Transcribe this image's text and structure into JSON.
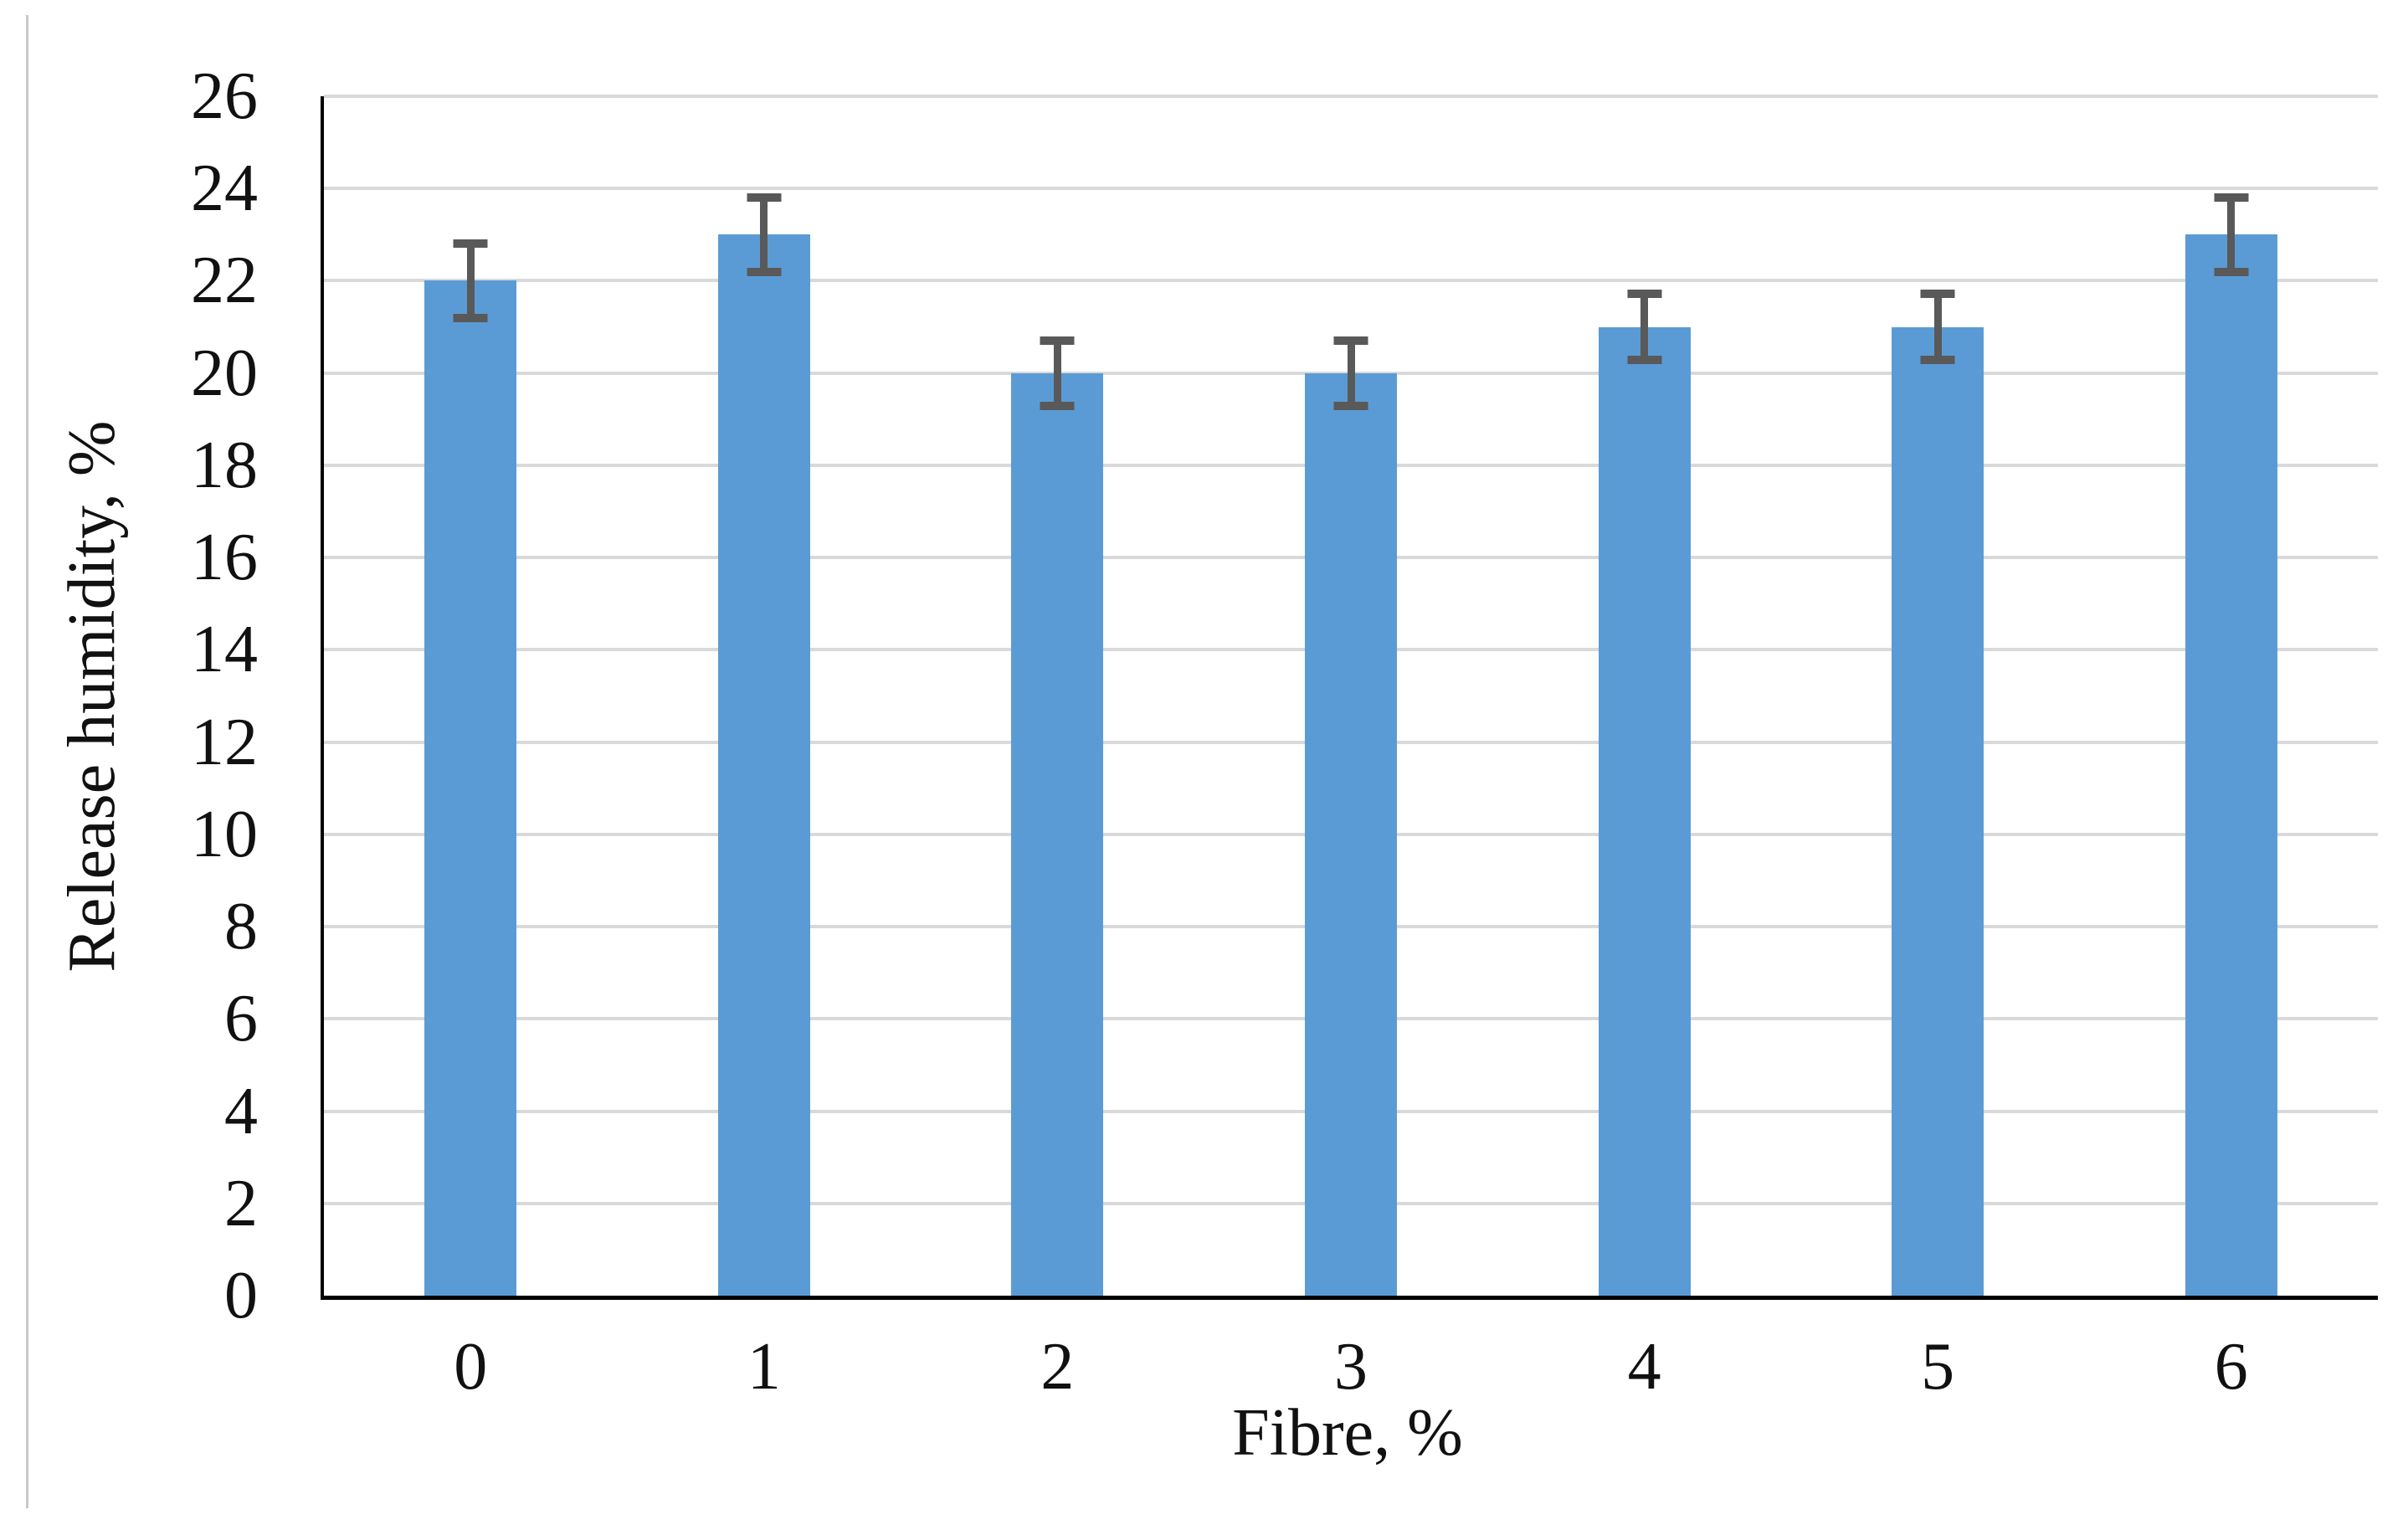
{
  "figure": {
    "background": "#ffffff",
    "left_rule_color": "#c8c8c8"
  },
  "chart_data": {
    "type": "bar",
    "title": "",
    "xlabel": "Fibre, %",
    "ylabel": "Release humidity, %",
    "categories": [
      "0",
      "1",
      "2",
      "3",
      "4",
      "5",
      "6"
    ],
    "series": [
      {
        "name": "Release humidity, %",
        "values": [
          22,
          23,
          20,
          20,
          21,
          21,
          23
        ],
        "error_plus": [
          0.9,
          0.9,
          0.8,
          0.8,
          0.8,
          0.8,
          0.9
        ],
        "error_minus": [
          0.9,
          0.9,
          0.8,
          0.8,
          0.8,
          0.8,
          0.9
        ]
      }
    ],
    "ylim": [
      0,
      26
    ],
    "yticks": [
      0,
      2,
      4,
      6,
      8,
      10,
      12,
      14,
      16,
      18,
      20,
      22,
      24,
      26
    ],
    "grid": true,
    "legend": "none",
    "bar_color": "#5b9bd5",
    "error_bar_color": "#595959",
    "gridline_color": "#d9d9d9",
    "axis_color": "#000000",
    "text_color": "#111111"
  }
}
